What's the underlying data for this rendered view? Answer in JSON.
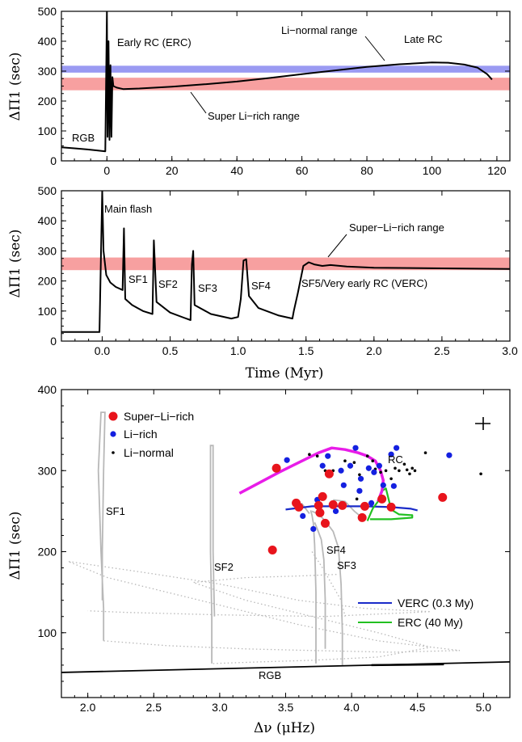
{
  "chart_data": [
    {
      "type": "line",
      "panel": "top",
      "ylabel": "ΔΠ1 (sec)",
      "xlim": [
        -14,
        124
      ],
      "ylim": [
        0,
        500
      ],
      "xticks": [
        0,
        20,
        40,
        60,
        80,
        100,
        120
      ],
      "yticks": [
        0,
        100,
        200,
        300,
        400,
        500
      ],
      "bands": [
        {
          "name": "Li-normal range",
          "y0": 295,
          "y1": 318,
          "color": "#9a9af2"
        },
        {
          "name": "Super Li-rich range",
          "y0": 236,
          "y1": 278,
          "color": "#f7a0a0"
        }
      ],
      "series": [
        {
          "points": [
            [
              -14,
              45
            ],
            [
              -10,
              42
            ],
            [
              -6,
              38
            ],
            [
              -3,
              35
            ],
            [
              -0.5,
              32
            ],
            [
              0,
              500
            ],
            [
              0.2,
              80
            ],
            [
              0.5,
              400
            ],
            [
              0.8,
              70
            ],
            [
              1.1,
              320
            ],
            [
              1.4,
              80
            ],
            [
              1.7,
              280
            ],
            [
              2,
              250
            ],
            [
              3,
              245
            ],
            [
              5,
              240
            ],
            [
              10,
              242
            ],
            [
              20,
              248
            ],
            [
              30,
              256
            ],
            [
              40,
              265
            ],
            [
              50,
              277
            ],
            [
              60,
              290
            ],
            [
              70,
              302
            ],
            [
              80,
              314
            ],
            [
              90,
              323
            ],
            [
              100,
              329
            ],
            [
              105,
              328
            ],
            [
              110,
              322
            ],
            [
              114,
              312
            ],
            [
              117,
              290
            ],
            [
              118.5,
              272
            ]
          ]
        }
      ],
      "annotations": [
        "Early RC (ERC)",
        "Li−normal range",
        "Late RC",
        "Super Li−rich range",
        "RGB"
      ]
    },
    {
      "type": "line",
      "panel": "middle",
      "ylabel": "ΔΠ1 (sec)",
      "xlabel": "Time (Myr)",
      "xlim": [
        -0.3,
        3.0
      ],
      "ylim": [
        0,
        500
      ],
      "xticks": [
        "0.0",
        "0.5",
        "1.0",
        "1.5",
        "2.0",
        "2.5",
        "3.0"
      ],
      "yticks": [
        0,
        100,
        200,
        300,
        400,
        500
      ],
      "bands": [
        {
          "name": "Super−Li−rich range",
          "y0": 236,
          "y1": 278,
          "color": "#f7a0a0"
        }
      ],
      "series": [
        {
          "points": [
            [
              -0.3,
              30
            ],
            [
              -0.02,
              30
            ],
            [
              0,
              500
            ],
            [
              0.01,
              300
            ],
            [
              0.03,
              220
            ],
            [
              0.06,
              195
            ],
            [
              0.1,
              180
            ],
            [
              0.15,
              170
            ],
            [
              0.16,
              375
            ],
            [
              0.17,
              140
            ],
            [
              0.22,
              120
            ],
            [
              0.3,
              100
            ],
            [
              0.37,
              90
            ],
            [
              0.38,
              335
            ],
            [
              0.4,
              130
            ],
            [
              0.5,
              95
            ],
            [
              0.6,
              78
            ],
            [
              0.65,
              70
            ],
            [
              0.66,
              255
            ],
            [
              0.67,
              300
            ],
            [
              0.68,
              120
            ],
            [
              0.8,
              90
            ],
            [
              0.95,
              75
            ],
            [
              1.0,
              80
            ],
            [
              1.02,
              140
            ],
            [
              1.04,
              268
            ],
            [
              1.06,
              272
            ],
            [
              1.08,
              150
            ],
            [
              1.15,
              110
            ],
            [
              1.3,
              85
            ],
            [
              1.4,
              75
            ],
            [
              1.41,
              100
            ],
            [
              1.44,
              160
            ],
            [
              1.48,
              250
            ],
            [
              1.52,
              262
            ],
            [
              1.56,
              255
            ],
            [
              1.62,
              250
            ],
            [
              1.68,
              253
            ],
            [
              1.8,
              248
            ],
            [
              2.0,
              244
            ],
            [
              2.5,
              242
            ],
            [
              3.0,
              240
            ]
          ]
        }
      ],
      "annotations": [
        "Main flash",
        "Super−Li−rich range",
        "SF1",
        "SF2",
        "SF3",
        "SF4",
        "SF5/Very early RC (VERC)"
      ]
    },
    {
      "type": "scatter",
      "panel": "bottom",
      "xlabel": "Δν (μHz)",
      "ylabel": "ΔΠ1 (sec)",
      "xlim": [
        1.8,
        5.2
      ],
      "ylim": [
        20,
        400
      ],
      "xticks": [
        "2.0",
        "2.5",
        "3.0",
        "3.5",
        "4.0",
        "4.5",
        "5.0"
      ],
      "yticks": [
        100,
        200,
        300,
        400
      ],
      "series": [
        {
          "name": "Super−Li−rich",
          "color": "#e8141c",
          "points": [
            [
              3.4,
              202
            ],
            [
              3.43,
              303
            ],
            [
              3.58,
              260
            ],
            [
              3.6,
              255
            ],
            [
              3.75,
              257
            ],
            [
              3.76,
              248
            ],
            [
              3.78,
              268
            ],
            [
              3.8,
              235
            ],
            [
              3.83,
              296
            ],
            [
              3.86,
              258
            ],
            [
              3.93,
              257
            ],
            [
              4.08,
              242
            ],
            [
              4.1,
              256
            ],
            [
              4.23,
              265
            ],
            [
              4.3,
              255
            ],
            [
              4.69,
              267
            ]
          ]
        },
        {
          "name": "Li−rich",
          "color": "#1420e0",
          "points": [
            [
              3.51,
              313
            ],
            [
              3.63,
              244
            ],
            [
              3.71,
              228
            ],
            [
              3.74,
              264
            ],
            [
              3.78,
              306
            ],
            [
              3.82,
              318
            ],
            [
              3.92,
              300
            ],
            [
              3.94,
              282
            ],
            [
              3.99,
              306
            ],
            [
              4.03,
              328
            ],
            [
              4.06,
              275
            ],
            [
              4.07,
              290
            ],
            [
              4.13,
              303
            ],
            [
              4.17,
              298
            ],
            [
              4.21,
              306
            ],
            [
              4.24,
              282
            ],
            [
              4.3,
              320
            ],
            [
              4.32,
              281
            ],
            [
              4.34,
              328
            ],
            [
              4.74,
              319
            ],
            [
              4.15,
              260
            ],
            [
              3.88,
              250
            ]
          ]
        },
        {
          "name": "Li−normal",
          "color": "#000000",
          "points": [
            [
              3.68,
              320
            ],
            [
              3.74,
              318
            ],
            [
              3.8,
              300
            ],
            [
              3.86,
              300
            ],
            [
              3.95,
              312
            ],
            [
              4.02,
              310
            ],
            [
              4.04,
              265
            ],
            [
              4.06,
              295
            ],
            [
              4.12,
              318
            ],
            [
              4.16,
              312
            ],
            [
              4.18,
              302
            ],
            [
              4.22,
              298
            ],
            [
              4.26,
              300
            ],
            [
              4.3,
              290
            ],
            [
              4.33,
              303
            ],
            [
              4.36,
              300
            ],
            [
              4.4,
              308
            ],
            [
              4.42,
              301
            ],
            [
              4.44,
              296
            ],
            [
              4.46,
              303
            ],
            [
              4.48,
              300
            ],
            [
              4.56,
              322
            ],
            [
              4.98,
              296
            ]
          ]
        },
        {
          "name": "VERC (0.3 My)",
          "color": "#1a2bc9",
          "points": [
            [
              3.5,
              252
            ],
            [
              3.7,
              256
            ],
            [
              3.9,
              256
            ],
            [
              4.1,
              256
            ],
            [
              4.3,
              255
            ],
            [
              4.45,
              253
            ],
            [
              4.5,
              251
            ]
          ]
        },
        {
          "name": "ERC (40 My)",
          "color": "#22c021",
          "points": [
            [
              4.12,
              238
            ],
            [
              4.16,
              253
            ],
            [
              4.2,
              262
            ],
            [
              4.23,
              275
            ],
            [
              4.26,
              278
            ],
            [
              4.3,
              252
            ],
            [
              4.36,
              246
            ],
            [
              4.46,
              245
            ],
            [
              4.46,
              242
            ],
            [
              4.3,
              240
            ],
            [
              4.14,
              240
            ]
          ]
        },
        {
          "name": "",
          "color": "#e81ce8",
          "points": [
            [
              3.15,
              272
            ],
            [
              3.3,
              285
            ],
            [
              3.45,
              298
            ],
            [
              3.6,
              310
            ],
            [
              3.75,
              322
            ],
            [
              3.85,
              328
            ],
            [
              3.95,
              326
            ],
            [
              4.05,
              322
            ],
            [
              4.12,
              318
            ],
            [
              4.18,
              312
            ],
            [
              4.22,
              300
            ],
            [
              4.24,
              288
            ],
            [
              4.23,
              275
            ],
            [
              4.2,
              262
            ]
          ]
        }
      ],
      "annotations": [
        "RC",
        "SF1",
        "SF2",
        "SF3",
        "SF4",
        "RGB"
      ]
    }
  ]
}
